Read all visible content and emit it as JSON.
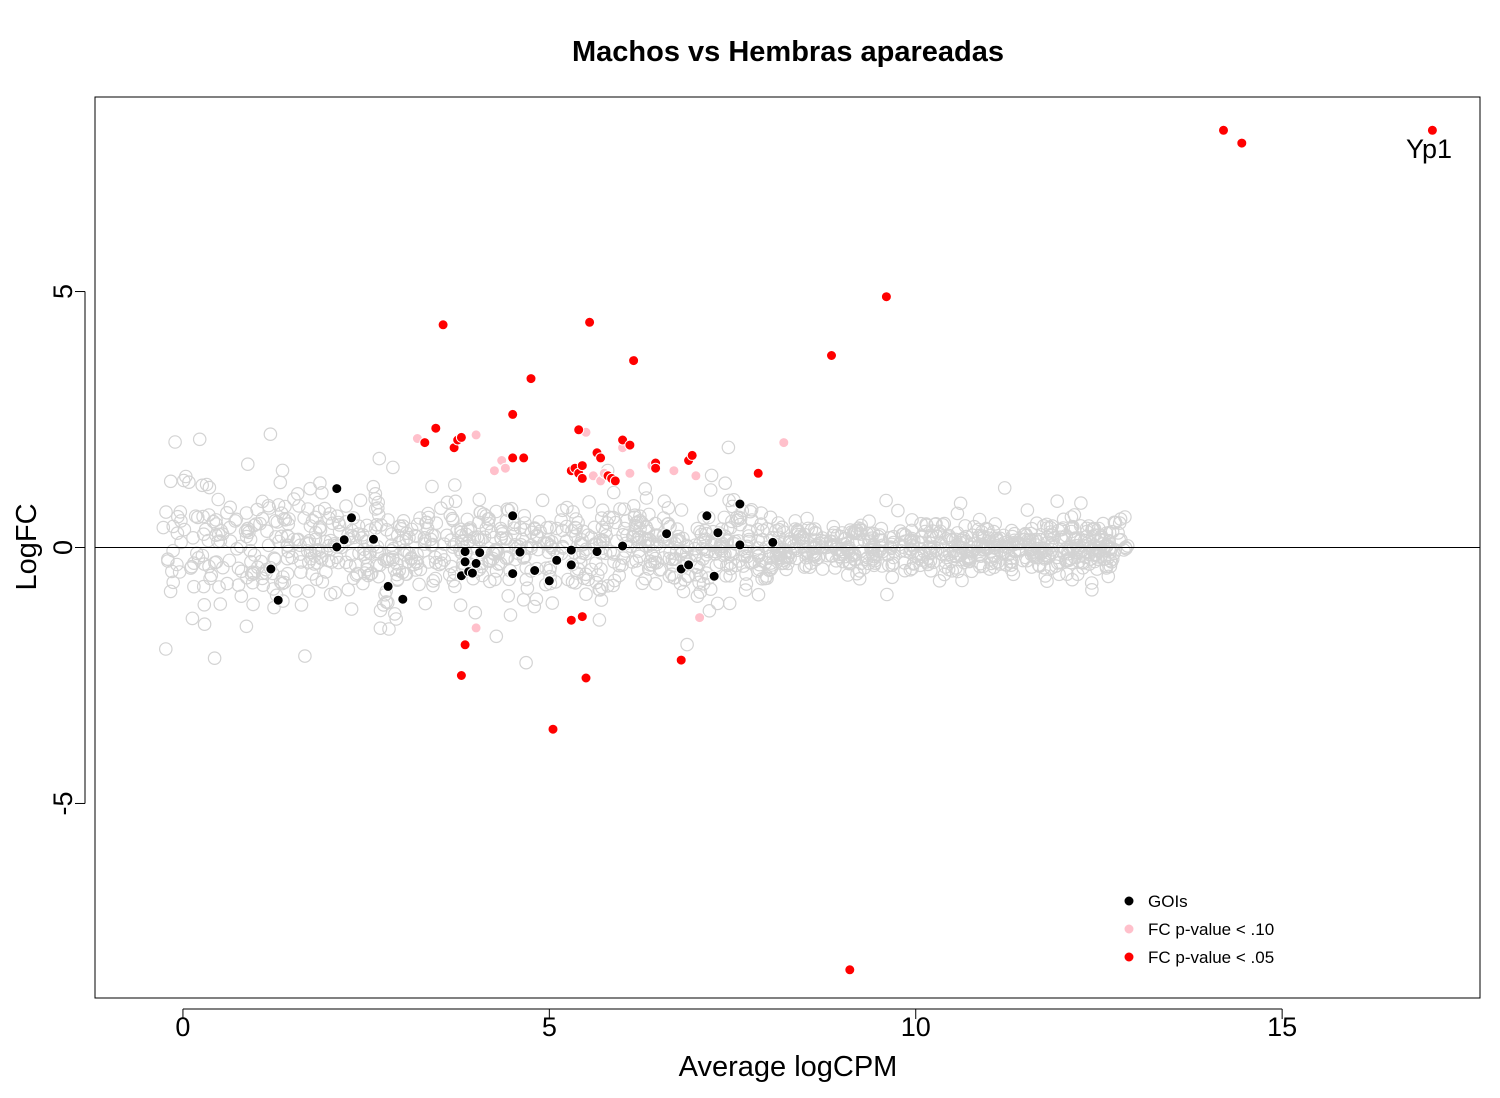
{
  "colors": {
    "background_points": "#d3d3d3",
    "goi": "#000000",
    "p10": "#ffc0cb",
    "p05": "#ff0000"
  },
  "chart_data": {
    "type": "scatter",
    "title": "Machos vs Hembras apareadas",
    "xlabel": "Average logCPM",
    "ylabel": "LogFC",
    "xlim": [
      -1.2,
      17.7
    ],
    "ylim": [
      -8.8,
      8.8
    ],
    "xticks": [
      0,
      5,
      10,
      15
    ],
    "yticks": [
      -5,
      0,
      5
    ],
    "hline": 0,
    "grid": false,
    "legend_position": "bottom-right",
    "legend": [
      {
        "label": "GOIs",
        "color": "#000000"
      },
      {
        "label": "FC p-value < .10",
        "color": "#ffc0cb"
      },
      {
        "label": " FC p-value < .05",
        "color": "#ff0000"
      }
    ],
    "annotations": [
      {
        "text": "Yp1",
        "x": 17.05,
        "y": 7.8
      }
    ],
    "series": [
      {
        "name": "GOIs",
        "color": "#000000",
        "points": [
          [
            1.2,
            -0.42
          ],
          [
            1.3,
            -1.03
          ],
          [
            2.1,
            1.15
          ],
          [
            2.1,
            0.01
          ],
          [
            2.2,
            0.15
          ],
          [
            2.3,
            0.58
          ],
          [
            2.6,
            0.16
          ],
          [
            2.8,
            -0.76
          ],
          [
            3.0,
            -1.01
          ],
          [
            3.8,
            -0.55
          ],
          [
            3.85,
            -0.28
          ],
          [
            3.85,
            -0.08
          ],
          [
            3.9,
            -0.47
          ],
          [
            3.95,
            -0.5
          ],
          [
            4.0,
            -0.31
          ],
          [
            4.05,
            -0.1
          ],
          [
            4.5,
            0.62
          ],
          [
            4.5,
            -0.51
          ],
          [
            4.6,
            -0.09
          ],
          [
            4.8,
            -0.45
          ],
          [
            5.0,
            -0.65
          ],
          [
            5.1,
            -0.25
          ],
          [
            5.3,
            -0.05
          ],
          [
            5.3,
            -0.34
          ],
          [
            5.65,
            -0.08
          ],
          [
            6.0,
            0.03
          ],
          [
            6.6,
            0.27
          ],
          [
            6.8,
            -0.42
          ],
          [
            6.9,
            -0.34
          ],
          [
            7.15,
            0.62
          ],
          [
            7.3,
            0.29
          ],
          [
            7.25,
            -0.56
          ],
          [
            7.6,
            0.85
          ],
          [
            7.6,
            0.05
          ],
          [
            8.05,
            0.1
          ]
        ]
      },
      {
        "name": "FC p-value < .10",
        "color": "#ffc0cb",
        "points": [
          [
            3.2,
            2.13
          ],
          [
            4.0,
            2.2
          ],
          [
            4.25,
            1.5
          ],
          [
            4.35,
            1.7
          ],
          [
            4.4,
            1.55
          ],
          [
            5.5,
            2.25
          ],
          [
            5.6,
            1.4
          ],
          [
            5.7,
            1.3
          ],
          [
            5.75,
            1.45
          ],
          [
            6.0,
            1.95
          ],
          [
            6.1,
            1.45
          ],
          [
            6.4,
            1.6
          ],
          [
            6.7,
            1.5
          ],
          [
            7.0,
            1.4
          ],
          [
            8.2,
            2.05
          ],
          [
            4.0,
            -1.57
          ],
          [
            7.05,
            -1.37
          ]
        ]
      },
      {
        "name": " FC p-value < .05",
        "color": "#ff0000",
        "points": [
          [
            3.3,
            2.05
          ],
          [
            3.45,
            2.33
          ],
          [
            3.55,
            4.35
          ],
          [
            3.7,
            1.95
          ],
          [
            3.75,
            2.1
          ],
          [
            3.8,
            2.15
          ],
          [
            4.5,
            2.6
          ],
          [
            4.5,
            1.75
          ],
          [
            4.65,
            1.75
          ],
          [
            4.75,
            3.3
          ],
          [
            5.3,
            1.5
          ],
          [
            5.35,
            1.55
          ],
          [
            5.4,
            2.3
          ],
          [
            5.4,
            1.45
          ],
          [
            5.45,
            1.6
          ],
          [
            5.45,
            1.35
          ],
          [
            5.55,
            4.4
          ],
          [
            5.65,
            1.85
          ],
          [
            5.7,
            1.75
          ],
          [
            5.8,
            1.4
          ],
          [
            5.85,
            1.35
          ],
          [
            5.9,
            1.3
          ],
          [
            6.0,
            2.1
          ],
          [
            6.1,
            2.0
          ],
          [
            6.15,
            3.65
          ],
          [
            6.45,
            1.65
          ],
          [
            6.45,
            1.55
          ],
          [
            6.9,
            1.7
          ],
          [
            6.95,
            1.8
          ],
          [
            7.85,
            1.45
          ],
          [
            8.85,
            3.75
          ],
          [
            9.6,
            4.9
          ],
          [
            14.2,
            8.15
          ],
          [
            14.45,
            7.9
          ],
          [
            17.05,
            8.15
          ],
          [
            3.85,
            -1.9
          ],
          [
            3.8,
            -2.5
          ],
          [
            5.3,
            -1.42
          ],
          [
            5.45,
            -1.35
          ],
          [
            5.5,
            -2.55
          ],
          [
            6.8,
            -2.2
          ],
          [
            5.05,
            -3.55
          ],
          [
            9.1,
            -8.25
          ]
        ]
      }
    ]
  }
}
